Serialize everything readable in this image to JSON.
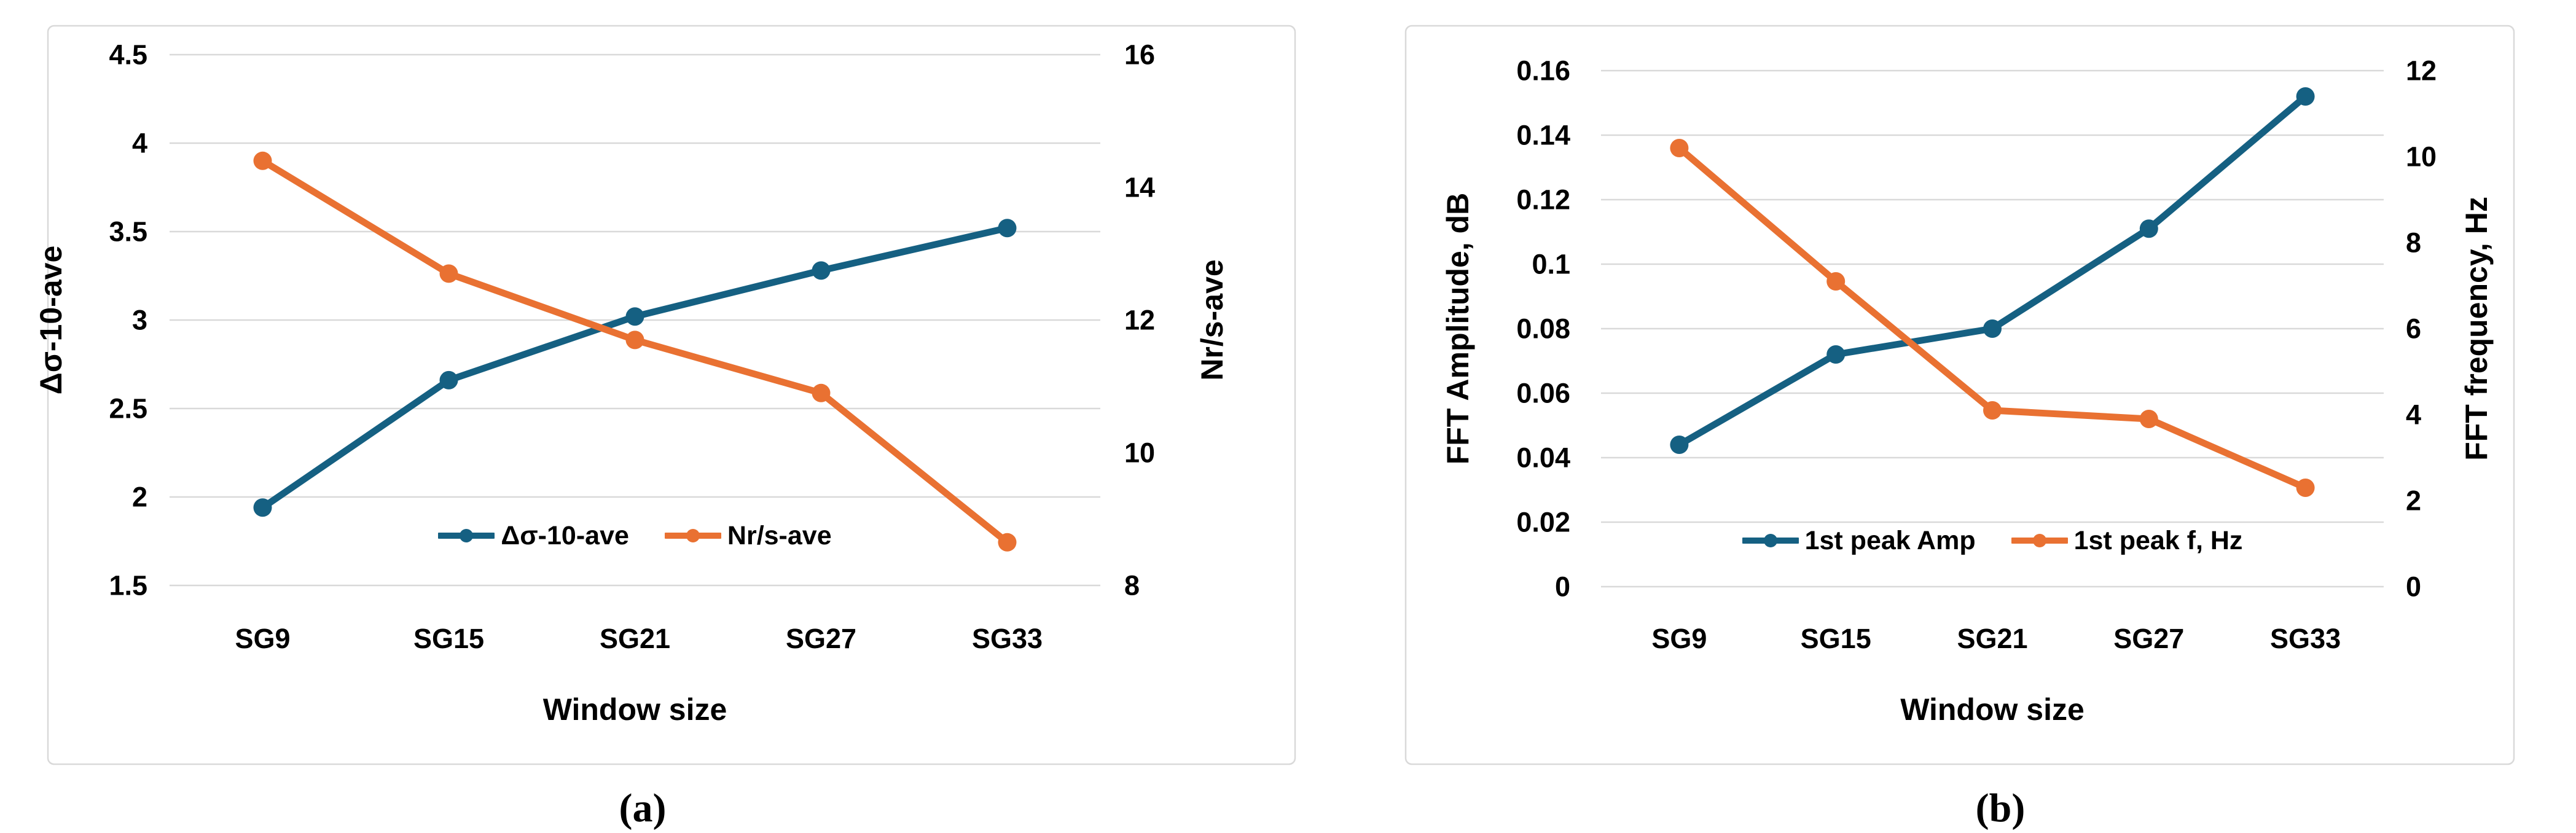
{
  "figure": {
    "background": "#ffffff",
    "description": "Two dual-axis line charts of window size study"
  },
  "colors": {
    "series_blue": "#156082",
    "series_orange": "#E97132",
    "gridline": "#D9D9D9",
    "panel_border": "#D9D9D9",
    "text": "#000000"
  },
  "chart_data": [
    {
      "id": "a",
      "type": "line",
      "caption": "(a)",
      "title": "",
      "xlabel": "Window size",
      "categories": [
        "SG9",
        "SG15",
        "SG21",
        "SG27",
        "SG33"
      ],
      "grid": true,
      "legend_position": "inside-bottom-center",
      "left_axis": {
        "label": "Δσ-10-ave",
        "min": 1.5,
        "max": 4.5,
        "tick_values": [
          4.5,
          4,
          3.5,
          3,
          2.5,
          2,
          1.5
        ],
        "tick_labels": [
          "4.5",
          "4",
          "3.5",
          "3",
          "2.5",
          "2",
          "1.5"
        ]
      },
      "right_axis": {
        "label": "Nr/s-ave",
        "min": 8,
        "max": 16,
        "tick_values": [
          16,
          14,
          12,
          10,
          8
        ],
        "tick_labels": [
          "16",
          "14",
          "12",
          "10",
          "8"
        ]
      },
      "series": [
        {
          "name": "Δσ-10-ave",
          "axis": "left",
          "color_key": "series_blue",
          "marker": "circle",
          "values": [
            1.94,
            2.66,
            3.02,
            3.28,
            3.52
          ]
        },
        {
          "name": "Nr/s-ave",
          "axis": "right",
          "color_key": "series_orange",
          "marker": "circle",
          "values": [
            14.4,
            12.7,
            11.7,
            10.9,
            8.65
          ]
        }
      ]
    },
    {
      "id": "b",
      "type": "line",
      "caption": "(b)",
      "title": "",
      "xlabel": "Window size",
      "categories": [
        "SG9",
        "SG15",
        "SG21",
        "SG27",
        "SG33"
      ],
      "grid": true,
      "legend_position": "inside-bottom-center",
      "left_axis": {
        "label": "FFT Amplitude, dB",
        "min": 0,
        "max": 0.16,
        "tick_values": [
          0.16,
          0.14,
          0.12,
          0.1,
          0.08,
          0.06,
          0.04,
          0.02,
          0
        ],
        "tick_labels": [
          "0.16",
          "0.14",
          "0.12",
          "0.1",
          "0.08",
          "0.06",
          "0.04",
          "0.02",
          "0"
        ]
      },
      "right_axis": {
        "label": "FFT frequency, Hz",
        "min": 0,
        "max": 12,
        "tick_values": [
          12,
          10,
          8,
          6,
          4,
          2,
          0
        ],
        "tick_labels": [
          "12",
          "10",
          "8",
          "6",
          "4",
          "2",
          "0"
        ]
      },
      "series": [
        {
          "name": "1st peak Amp",
          "axis": "left",
          "color_key": "series_blue",
          "marker": "circle",
          "values": [
            0.044,
            0.072,
            0.08,
            0.111,
            0.152
          ]
        },
        {
          "name": "1st peak f, Hz",
          "axis": "right",
          "color_key": "series_orange",
          "marker": "circle",
          "values": [
            10.2,
            7.1,
            4.1,
            3.9,
            2.3
          ]
        }
      ]
    }
  ]
}
